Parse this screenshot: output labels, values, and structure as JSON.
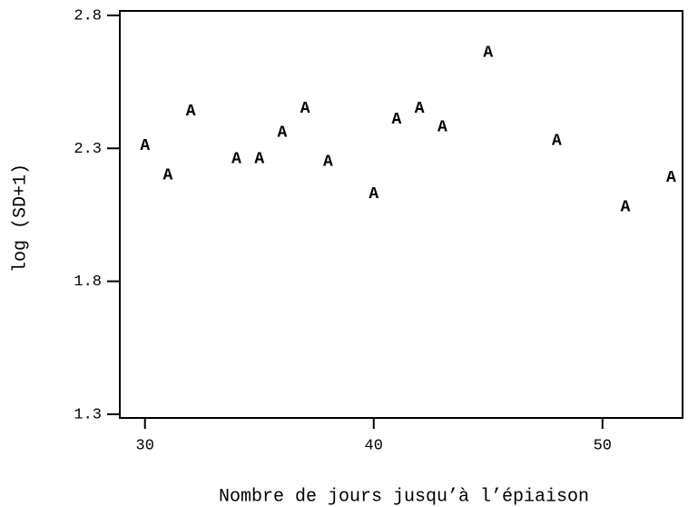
{
  "chart_data": {
    "type": "scatter",
    "xlabel": "Nombre de jours jusqu’à l’épiaison",
    "ylabel": "log (SD+1)",
    "marker": "A",
    "color": "#000000",
    "x": [
      30,
      31,
      32,
      34,
      35,
      36,
      37,
      38,
      40,
      41,
      42,
      43,
      45,
      48,
      51,
      53
    ],
    "values": [
      2.31,
      2.2,
      2.44,
      2.26,
      2.26,
      2.36,
      2.45,
      2.25,
      2.13,
      2.41,
      2.45,
      2.38,
      2.66,
      2.33,
      2.08,
      2.19
    ],
    "xlim": [
      28.9,
      53.5
    ],
    "ylim": [
      1.286,
      2.817
    ],
    "xticks": [
      30,
      40,
      50
    ],
    "yticks": [
      {
        "value": 2.8,
        "label": "2.8"
      },
      {
        "value": 2.3,
        "label": "2.3"
      },
      {
        "value": 1.8,
        "label": "1.8"
      },
      {
        "value": 1.3,
        "label": "1.3"
      }
    ],
    "grid": false
  }
}
